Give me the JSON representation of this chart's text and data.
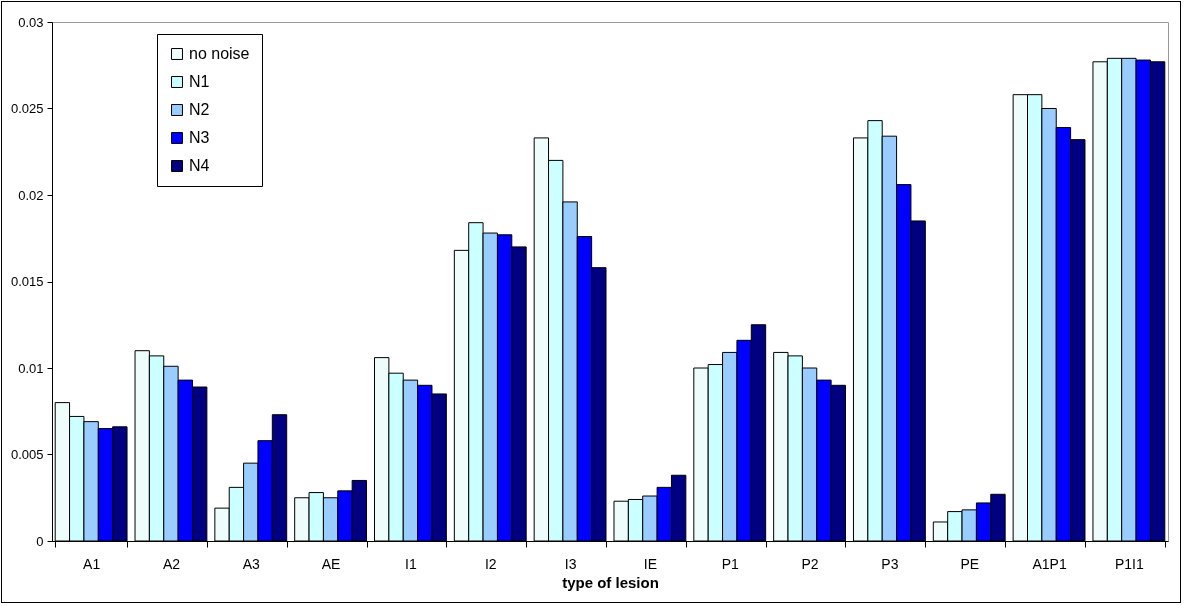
{
  "chart_data": {
    "type": "bar",
    "xlabel": "type of lesion",
    "categories": [
      "A1",
      "A2",
      "A3",
      "AE",
      "I1",
      "I2",
      "I3",
      "IE",
      "P1",
      "P2",
      "P3",
      "PE",
      "A1P1",
      "P1I1"
    ],
    "series": [
      {
        "name": "no noise",
        "color": "#eefcfc",
        "values": [
          0.008,
          0.011,
          0.0019,
          0.0025,
          0.0106,
          0.0168,
          0.0233,
          0.0023,
          0.01,
          0.0109,
          0.0233,
          0.0011,
          0.0258,
          0.0277
        ]
      },
      {
        "name": "N1",
        "color": "#ccffff",
        "values": [
          0.0072,
          0.0107,
          0.0031,
          0.0028,
          0.0097,
          0.0184,
          0.022,
          0.0024,
          0.0102,
          0.0107,
          0.0243,
          0.0017,
          0.0258,
          0.0279
        ]
      },
      {
        "name": "N2",
        "color": "#99ccff",
        "values": [
          0.0069,
          0.0101,
          0.0045,
          0.0025,
          0.0093,
          0.0178,
          0.0196,
          0.0026,
          0.0109,
          0.01,
          0.0234,
          0.0018,
          0.025,
          0.0279
        ]
      },
      {
        "name": "N3",
        "color": "#0000ff",
        "values": [
          0.0065,
          0.0093,
          0.0058,
          0.0029,
          0.009,
          0.0177,
          0.0176,
          0.0031,
          0.0116,
          0.0093,
          0.0206,
          0.0022,
          0.0239,
          0.0278
        ]
      },
      {
        "name": "N4",
        "color": "#000080",
        "values": [
          0.0066,
          0.0089,
          0.0073,
          0.0035,
          0.0085,
          0.017,
          0.0158,
          0.0038,
          0.0125,
          0.009,
          0.0185,
          0.0027,
          0.0232,
          0.0277
        ]
      }
    ],
    "ylim": [
      0,
      0.03
    ],
    "yticks": [
      0,
      0.005,
      0.01,
      0.015,
      0.02,
      0.025,
      0.03
    ],
    "grid": false,
    "legend": "top left"
  }
}
